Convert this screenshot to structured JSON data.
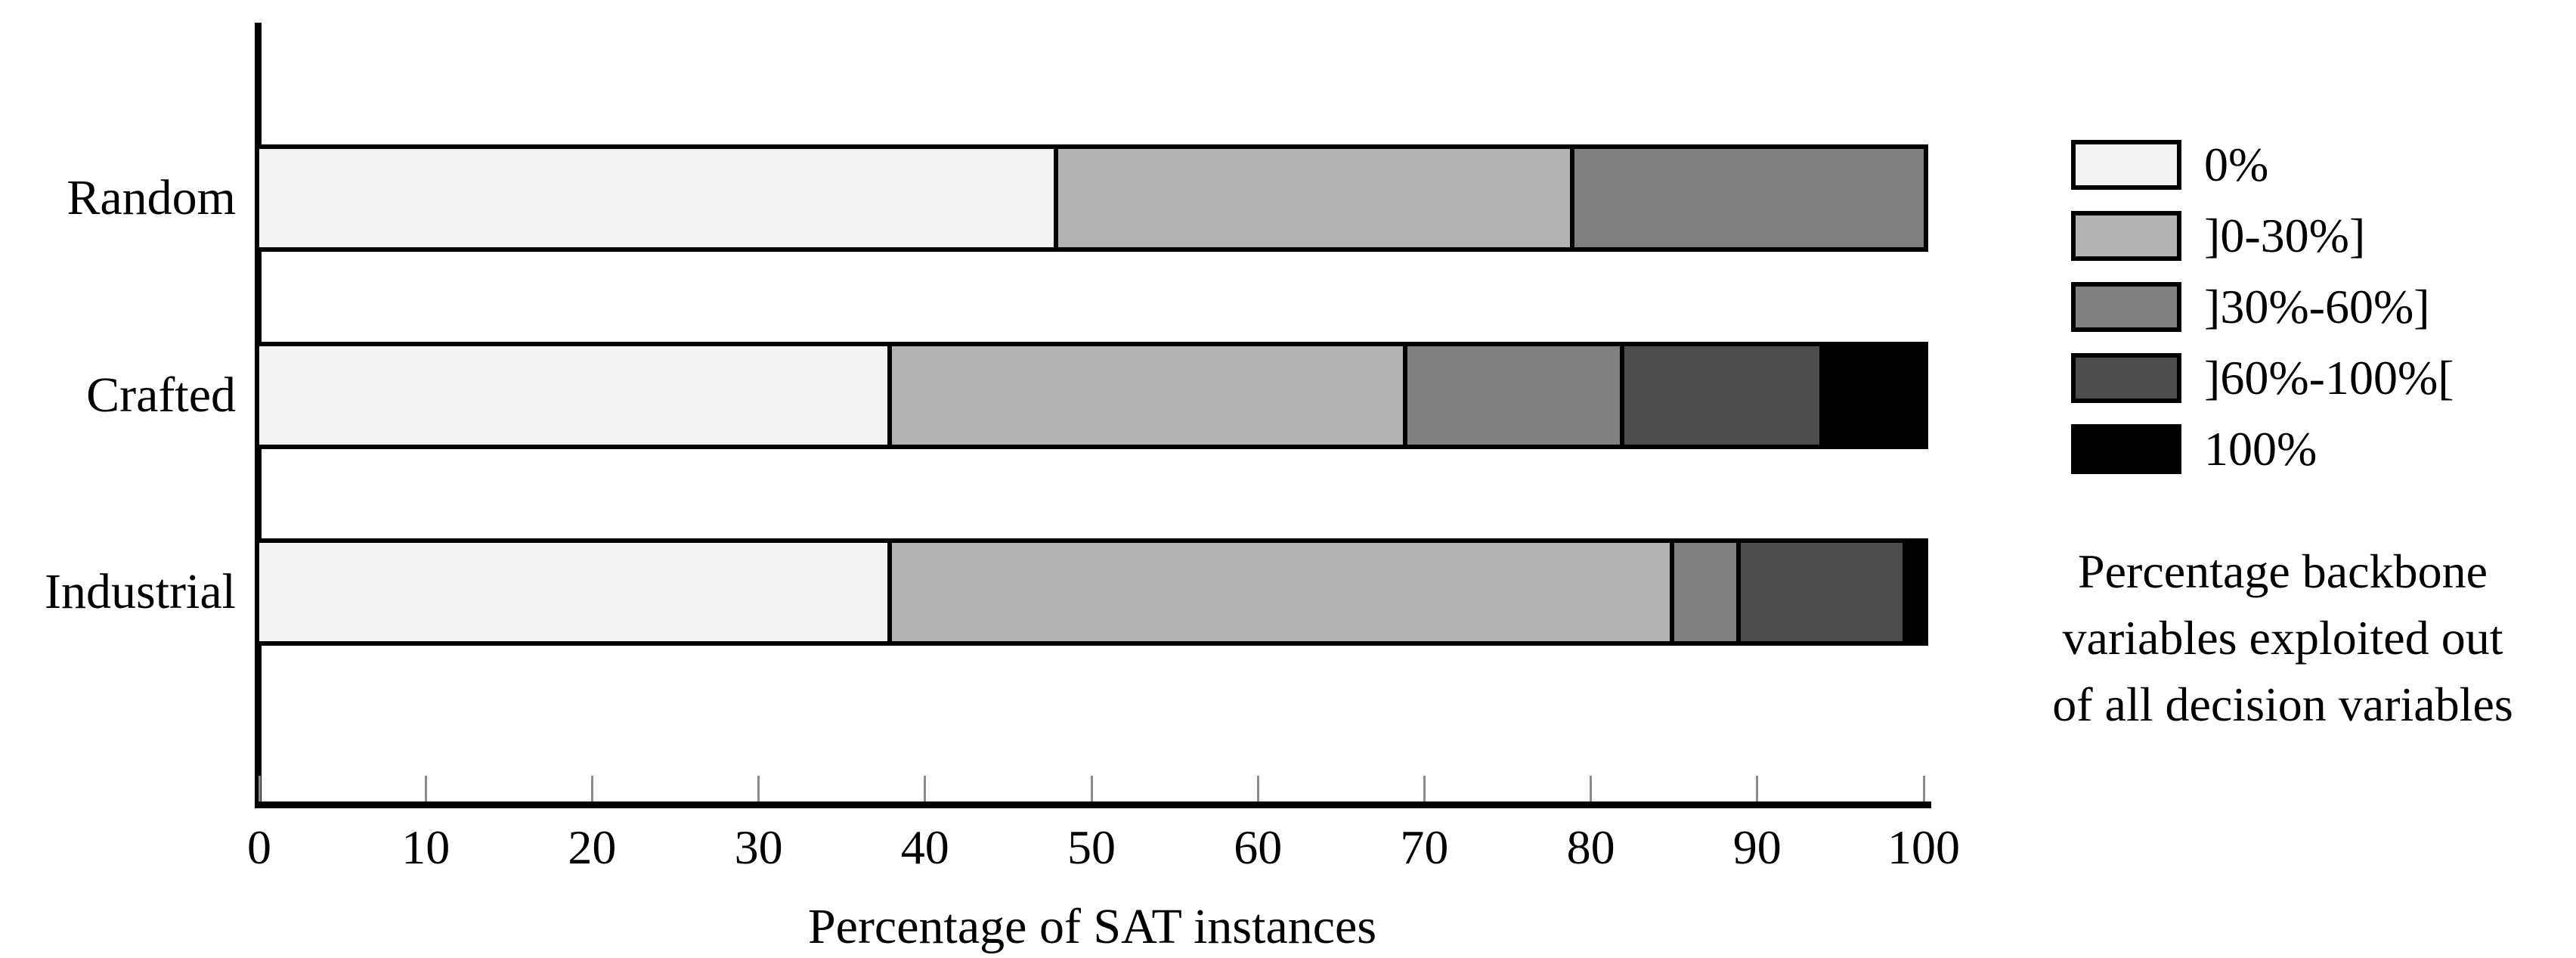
{
  "chart_data": {
    "type": "bar",
    "orientation": "horizontal",
    "stacked": true,
    "title": "",
    "xlabel": "Percentage of SAT instances",
    "ylabel": "",
    "xlim": [
      0,
      100
    ],
    "xticks": [
      0,
      10,
      20,
      30,
      40,
      50,
      60,
      70,
      80,
      90,
      100
    ],
    "grid": false,
    "legend_position": "right",
    "categories": [
      "Random",
      "Crafted",
      "Industrial"
    ],
    "series": [
      {
        "name": "0%",
        "color": "#f2f2f2",
        "values": [
          48,
          38,
          38
        ]
      },
      {
        "name": "]0-30%]",
        "color": "#b3b3b3",
        "values": [
          31,
          31,
          47
        ]
      },
      {
        "name": "]30%-60%]",
        "color": "#808080",
        "values": [
          21,
          13,
          4
        ]
      },
      {
        "name": "]60%-100%[",
        "color": "#4d4d4d",
        "values": [
          0,
          12,
          10
        ]
      },
      {
        "name": "100%",
        "color": "#000000",
        "values": [
          0,
          6,
          1
        ]
      }
    ],
    "legend_note": "Percentage backbone variables exploited out of all decision variables"
  },
  "legend": {
    "note_lines": [
      "Percentage backbone",
      "variables exploited out",
      "of all decision variables"
    ]
  },
  "colors": {
    "axis": "#000000",
    "tick": "#8a8a8a",
    "background": "#ffffff"
  }
}
